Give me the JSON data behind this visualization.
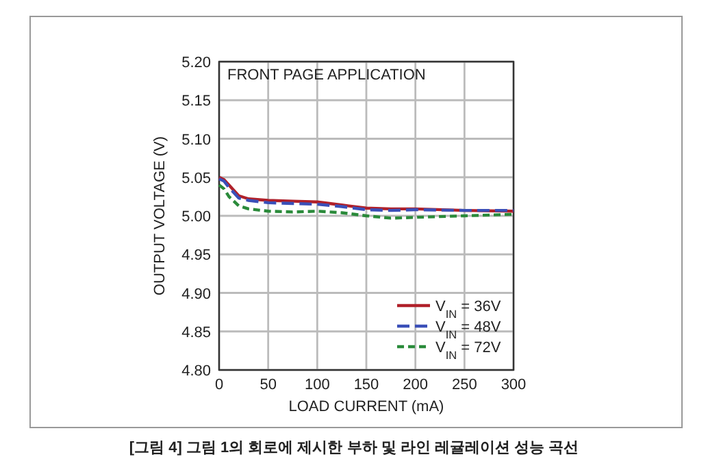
{
  "chart_data": {
    "type": "line",
    "title": "FRONT PAGE APPLICATION",
    "xlabel": "LOAD CURRENT (mA)",
    "ylabel": "OUTPUT VOLTAGE (V)",
    "annotations": [
      "[그림 4] 그림 1의 회로에 제시한 부하 및 라인 레귤레이션 성능 곡선"
    ],
    "xlim": [
      0,
      300
    ],
    "ylim": [
      4.8,
      5.2
    ],
    "xticks": [
      0,
      50,
      100,
      150,
      200,
      250,
      300
    ],
    "yticks": [
      {
        "value": 4.8,
        "label": "4.80"
      },
      {
        "value": 4.85,
        "label": "4.85"
      },
      {
        "value": 4.9,
        "label": "4.90"
      },
      {
        "value": 4.95,
        "label": "4.95"
      },
      {
        "value": 5.0,
        "label": "5.00"
      },
      {
        "value": 5.05,
        "label": "5.05"
      },
      {
        "value": 5.1,
        "label": "5.10"
      },
      {
        "value": 5.15,
        "label": "5.15"
      },
      {
        "value": 5.2,
        "label": "5.20"
      }
    ],
    "grid": true,
    "legend": "bottom right",
    "x": [
      0,
      5,
      10,
      20,
      30,
      50,
      75,
      100,
      125,
      150,
      175,
      200,
      250,
      300
    ],
    "series": [
      {
        "name": "V$_{IN}$ = 36V",
        "color": "#b0202a",
        "line_style": "solid",
        "values": [
          5.05,
          5.047,
          5.04,
          5.026,
          5.022,
          5.02,
          5.019,
          5.018,
          5.014,
          5.01,
          5.009,
          5.009,
          5.007,
          5.006
        ]
      },
      {
        "name": "V$_{IN}$ = 48V",
        "color": "#3a4fb8",
        "line_style": "dashed",
        "values": [
          5.048,
          5.045,
          5.037,
          5.023,
          5.02,
          5.017,
          5.016,
          5.015,
          5.012,
          5.008,
          5.007,
          5.008,
          5.007,
          5.007
        ]
      },
      {
        "name": "V$_{IN}$ = 72V",
        "color": "#2a8a3a",
        "line_style": "dotted",
        "values": [
          5.04,
          5.035,
          5.025,
          5.013,
          5.009,
          5.006,
          5.005,
          5.006,
          5.004,
          5.0,
          4.997,
          4.998,
          5.0,
          5.002
        ]
      }
    ]
  }
}
